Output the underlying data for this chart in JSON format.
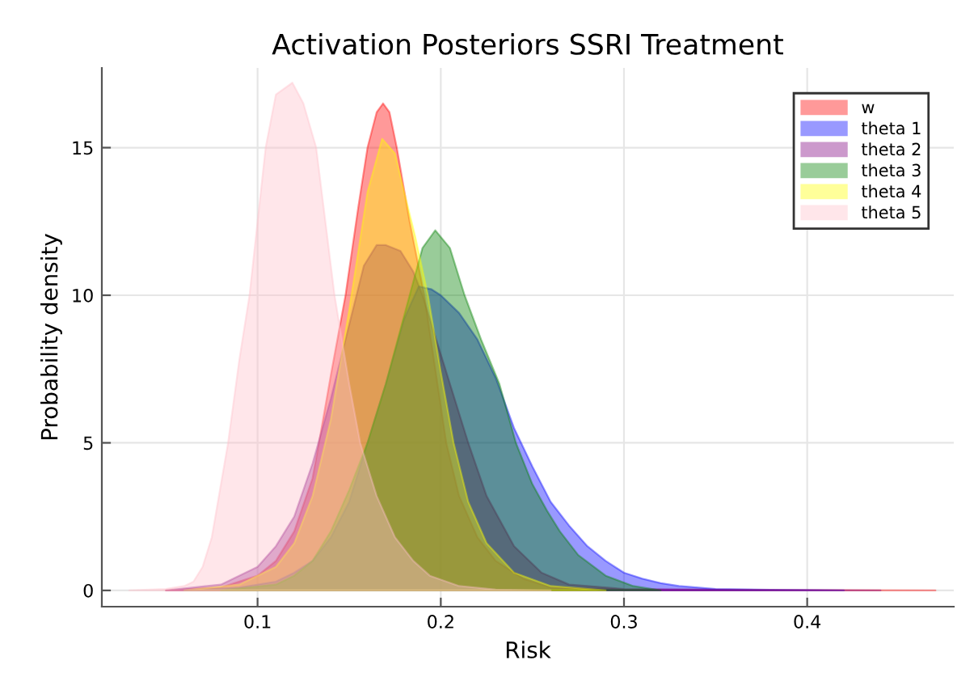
{
  "chart_data": {
    "type": "area",
    "title": "Activation Posteriors SSRI Treatment",
    "xlabel": "Risk",
    "ylabel": "Probability density",
    "xlim": [
      0.015,
      0.48
    ],
    "ylim": [
      -0.55,
      17.7
    ],
    "xticks": [
      0.1,
      0.2,
      0.3,
      0.4
    ],
    "yticks": [
      0,
      5,
      10,
      15
    ],
    "grid": true,
    "legend": "top right",
    "series": [
      {
        "name": "w",
        "color": "#ff0000",
        "x": [
          0.05,
          0.08,
          0.1,
          0.11,
          0.12,
          0.13,
          0.1335,
          0.14,
          0.148,
          0.155,
          0.16,
          0.165,
          0.1685,
          0.172,
          0.176,
          0.183,
          0.191,
          0.197,
          0.203,
          0.21,
          0.22,
          0.23,
          0.245,
          0.26,
          0.3,
          0.47
        ],
        "values": [
          0,
          0.1,
          0.5,
          1.0,
          2.0,
          3.8,
          5,
          7.3,
          10,
          13,
          15,
          16.2,
          16.5,
          16.2,
          15,
          12.5,
          10,
          7.5,
          5,
          3.2,
          1.8,
          1.0,
          0.4,
          0.1,
          0.02,
          0
        ]
      },
      {
        "name": "theta 1",
        "color": "#0000ff",
        "x": [
          0.06,
          0.09,
          0.11,
          0.12,
          0.13,
          0.14,
          0.15,
          0.16,
          0.17,
          0.18,
          0.188,
          0.195,
          0.2,
          0.21,
          0.22,
          0.23,
          0.24,
          0.25,
          0.26,
          0.27,
          0.28,
          0.29,
          0.3,
          0.31,
          0.32,
          0.33,
          0.35,
          0.38,
          0.42
        ],
        "values": [
          0,
          0.1,
          0.3,
          0.6,
          1.0,
          1.8,
          3.0,
          5.0,
          7.0,
          9.2,
          10.3,
          10.2,
          10.0,
          9.4,
          8.5,
          7.2,
          5.5,
          4.2,
          3.0,
          2.2,
          1.5,
          1.0,
          0.6,
          0.4,
          0.25,
          0.15,
          0.05,
          0.02,
          0
        ]
      },
      {
        "name": "theta 2",
        "color": "#800080",
        "x": [
          0.05,
          0.08,
          0.1,
          0.11,
          0.12,
          0.13,
          0.14,
          0.15,
          0.158,
          0.165,
          0.17,
          0.178,
          0.185,
          0.19,
          0.2,
          0.21,
          0.215,
          0.225,
          0.24,
          0.255,
          0.27,
          0.3,
          0.44
        ],
        "values": [
          0,
          0.2,
          0.8,
          1.5,
          2.5,
          4.3,
          6.5,
          9.0,
          11.0,
          11.7,
          11.7,
          11.5,
          10.8,
          10.0,
          8.0,
          6.0,
          5.0,
          3.2,
          1.5,
          0.6,
          0.2,
          0.05,
          0
        ]
      },
      {
        "name": "theta 3",
        "color": "#008000",
        "x": [
          0.08,
          0.11,
          0.12,
          0.13,
          0.14,
          0.15,
          0.16,
          0.17,
          0.183,
          0.19,
          0.197,
          0.205,
          0.213,
          0.222,
          0.232,
          0.241,
          0.25,
          0.258,
          0.265,
          0.275,
          0.29,
          0.305,
          0.32
        ],
        "values": [
          0,
          0.2,
          0.5,
          1.0,
          2.0,
          3.4,
          5.0,
          7.0,
          10.0,
          11.6,
          12.2,
          11.6,
          10.0,
          8.5,
          7.0,
          5.0,
          3.6,
          2.7,
          2.0,
          1.2,
          0.5,
          0.15,
          0
        ]
      },
      {
        "name": "theta 4",
        "color": "#ffff00",
        "x": [
          0.06,
          0.09,
          0.11,
          0.12,
          0.13,
          0.14,
          0.15,
          0.16,
          0.168,
          0.175,
          0.18,
          0.186,
          0.193,
          0.2,
          0.207,
          0.215,
          0.225,
          0.24,
          0.26,
          0.29
        ],
        "values": [
          0,
          0.2,
          0.8,
          1.6,
          3.2,
          5.8,
          9.5,
          13.5,
          15.3,
          14.8,
          13.5,
          12.0,
          10.0,
          7.4,
          5.0,
          3.0,
          1.6,
          0.6,
          0.15,
          0
        ]
      },
      {
        "name": "theta 5",
        "color": "#ffc0cb",
        "x": [
          0.03,
          0.05,
          0.06,
          0.065,
          0.07,
          0.075,
          0.0839,
          0.09,
          0.0956,
          0.1044,
          0.11,
          0.119,
          0.125,
          0.132,
          0.142,
          0.15,
          0.156,
          0.165,
          0.175,
          0.185,
          0.194,
          0.21,
          0.23,
          0.26
        ],
        "values": [
          0,
          0.05,
          0.15,
          0.3,
          0.8,
          1.8,
          5,
          7.8,
          10,
          15,
          16.8,
          17.2,
          16.5,
          15,
          10,
          7.0,
          5,
          3.2,
          1.8,
          1.0,
          0.5,
          0.15,
          0.03,
          0
        ]
      }
    ]
  }
}
